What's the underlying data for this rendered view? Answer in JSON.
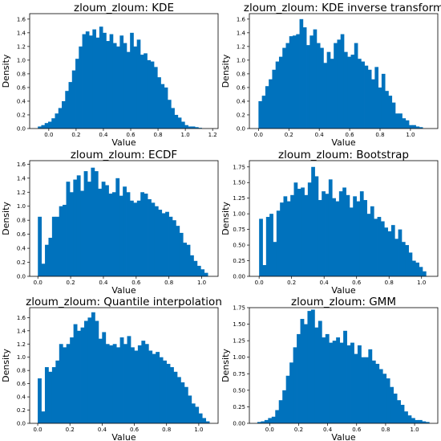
{
  "colors": {
    "bar": "#0072BD",
    "background": "#ffffff",
    "axes": "#000000"
  },
  "chart_data": [
    {
      "type": "bar",
      "title": "zloum_zloum: KDE",
      "xlabel": "Value",
      "ylabel": "Density",
      "xlim": [
        -0.14,
        1.24
      ],
      "ylim": [
        0,
        1.68
      ],
      "xticks": [
        0.0,
        0.2,
        0.4,
        0.6,
        0.8,
        1.0,
        1.2
      ],
      "xtick_labels": [
        "0.0",
        "0.2",
        "0.4",
        "0.6",
        "0.8",
        "1.0",
        "1.2"
      ],
      "yticks": [
        0.0,
        0.2,
        0.4,
        0.6,
        0.8,
        1.0,
        1.2,
        1.4,
        1.6
      ],
      "ytick_labels": [
        "0.0",
        "0.2",
        "0.4",
        "0.6",
        "0.8",
        "1.0",
        "1.2",
        "1.4",
        "1.6"
      ],
      "bin_start": -0.08,
      "bin_width": 0.025,
      "values": [
        0.03,
        0.05,
        0.08,
        0.1,
        0.15,
        0.22,
        0.3,
        0.4,
        0.55,
        0.68,
        0.85,
        1.02,
        1.2,
        1.38,
        1.42,
        1.36,
        1.45,
        1.33,
        1.49,
        1.4,
        1.28,
        1.38,
        1.25,
        1.2,
        1.36,
        1.25,
        1.12,
        1.4,
        1.2,
        1.3,
        1.08,
        1.1,
        1.0,
        0.98,
        0.9,
        0.75,
        0.65,
        0.6,
        0.42,
        0.3,
        0.2,
        0.16,
        0.1,
        0.05,
        0.03,
        0.03,
        0.02,
        0.01
      ]
    },
    {
      "type": "bar",
      "title": "zloum_zloum: KDE inverse transform",
      "xlabel": "Value",
      "ylabel": "Density",
      "xlim": [
        -0.06,
        1.18
      ],
      "ylim": [
        0,
        1.68
      ],
      "xticks": [
        0.0,
        0.2,
        0.4,
        0.6,
        0.8,
        1.0
      ],
      "xtick_labels": [
        "0.0",
        "0.2",
        "0.4",
        "0.6",
        "0.8",
        "1.0"
      ],
      "yticks": [
        0.0,
        0.2,
        0.4,
        0.6,
        0.8,
        1.0,
        1.2,
        1.4,
        1.6
      ],
      "ytick_labels": [
        "0.0",
        "0.2",
        "0.4",
        "0.6",
        "0.8",
        "1.0",
        "1.2",
        "1.4",
        "1.6"
      ],
      "bin_start": 0.0,
      "bin_width": 0.0225,
      "values": [
        0.4,
        0.48,
        0.62,
        0.72,
        0.86,
        0.98,
        1.05,
        1.18,
        1.25,
        1.35,
        1.36,
        1.38,
        1.6,
        1.48,
        1.22,
        1.36,
        1.45,
        1.25,
        1.18,
        0.96,
        1.12,
        1.02,
        1.25,
        1.3,
        1.38,
        1.12,
        1.05,
        1.08,
        1.25,
        1.02,
        0.98,
        0.92,
        0.86,
        0.72,
        0.9,
        0.6,
        0.8,
        0.55,
        0.48,
        0.38,
        0.22,
        0.22,
        0.15,
        0.12,
        0.05,
        0.05,
        0.03,
        0.02
      ]
    },
    {
      "type": "bar",
      "title": "zloum_zloum: ECDF",
      "xlabel": "Value",
      "ylabel": "Density",
      "xlim": [
        -0.05,
        1.1
      ],
      "ylim": [
        0,
        1.65
      ],
      "xticks": [
        0.0,
        0.2,
        0.4,
        0.6,
        0.8,
        1.0
      ],
      "xtick_labels": [
        "0.0",
        "0.2",
        "0.4",
        "0.6",
        "0.8",
        "1.0"
      ],
      "yticks": [
        0.0,
        0.2,
        0.4,
        0.6,
        0.8,
        1.0,
        1.2,
        1.4,
        1.6
      ],
      "ytick_labels": [
        "0.0",
        "0.2",
        "0.4",
        "0.6",
        "0.8",
        "1.0",
        "1.2",
        "1.4",
        "1.6"
      ],
      "bin_start": 0.0,
      "bin_width": 0.0216,
      "values": [
        0.85,
        0.18,
        0.45,
        0.55,
        0.85,
        0.85,
        1.0,
        1.02,
        1.35,
        1.2,
        1.38,
        1.44,
        1.22,
        1.5,
        1.35,
        1.55,
        1.5,
        1.25,
        1.35,
        1.3,
        1.18,
        1.2,
        1.4,
        1.15,
        1.28,
        1.2,
        1.08,
        1.05,
        1.08,
        1.2,
        1.18,
        1.1,
        1.05,
        1.0,
        0.95,
        0.9,
        0.92,
        0.85,
        0.8,
        0.72,
        0.62,
        0.48,
        0.45,
        0.3,
        0.22,
        0.15,
        0.1,
        0.05
      ]
    },
    {
      "type": "bar",
      "title": "zloum_zloum: Bootstrap",
      "xlabel": "Value",
      "ylabel": "Density",
      "xlim": [
        -0.06,
        1.1
      ],
      "ylim": [
        0,
        1.85
      ],
      "xticks": [
        0.0,
        0.2,
        0.4,
        0.6,
        0.8,
        1.0
      ],
      "xtick_labels": [
        "0.0",
        "0.2",
        "0.4",
        "0.6",
        "0.8",
        "1.0"
      ],
      "yticks": [
        0.0,
        0.25,
        0.5,
        0.75,
        1.0,
        1.25,
        1.5,
        1.75
      ],
      "ytick_labels": [
        "0.00",
        "0.25",
        "0.50",
        "0.75",
        "1.00",
        "1.25",
        "1.50",
        "1.75"
      ],
      "bin_start": 0.0,
      "bin_width": 0.0214,
      "values": [
        0.92,
        0.18,
        0.95,
        1.0,
        0.55,
        1.05,
        1.18,
        1.28,
        1.2,
        1.3,
        1.5,
        1.4,
        1.42,
        1.3,
        1.5,
        1.75,
        1.6,
        1.22,
        1.36,
        1.32,
        1.55,
        1.25,
        1.2,
        1.36,
        1.42,
        1.3,
        1.1,
        1.28,
        1.2,
        1.36,
        1.22,
        1.0,
        1.12,
        0.92,
        0.95,
        0.88,
        0.78,
        0.72,
        0.82,
        0.6,
        0.75,
        0.55,
        0.5,
        0.38,
        0.25,
        0.22,
        0.15,
        0.08
      ]
    },
    {
      "type": "bar",
      "title": "zloum_zloum: Quantile interpolation",
      "xlabel": "Value",
      "ylabel": "Density",
      "xlim": [
        -0.05,
        1.12
      ],
      "ylim": [
        0,
        1.75
      ],
      "xticks": [
        0.0,
        0.2,
        0.4,
        0.6,
        0.8,
        1.0
      ],
      "xtick_labels": [
        "0.0",
        "0.2",
        "0.4",
        "0.6",
        "0.8",
        "1.0"
      ],
      "yticks": [
        0.0,
        0.2,
        0.4,
        0.6,
        0.8,
        1.0,
        1.2,
        1.4,
        1.6
      ],
      "ytick_labels": [
        "0.0",
        "0.2",
        "0.4",
        "0.6",
        "0.8",
        "1.0",
        "1.2",
        "1.4",
        "1.6"
      ],
      "bin_start": 0.0,
      "bin_width": 0.0222,
      "values": [
        0.68,
        0.18,
        0.85,
        0.78,
        0.85,
        0.95,
        1.2,
        1.15,
        1.2,
        1.3,
        1.5,
        1.4,
        1.45,
        1.55,
        1.6,
        1.68,
        1.55,
        1.28,
        1.38,
        1.2,
        1.18,
        1.2,
        1.15,
        1.3,
        1.2,
        1.32,
        1.15,
        1.1,
        1.18,
        1.25,
        1.2,
        1.1,
        1.05,
        1.08,
        1.0,
        0.95,
        0.9,
        0.85,
        0.78,
        0.7,
        0.62,
        0.55,
        0.42,
        0.3,
        0.25,
        0.15,
        0.08,
        0.03
      ]
    },
    {
      "type": "bar",
      "title": "zloum_zloum: GMM",
      "xlabel": "Value",
      "ylabel": "Density",
      "xlim": [
        -0.14,
        1.16
      ],
      "ylim": [
        0,
        1.75
      ],
      "xticks": [
        0.0,
        0.2,
        0.4,
        0.6,
        0.8,
        1.0
      ],
      "xtick_labels": [
        "0.0",
        "0.2",
        "0.4",
        "0.6",
        "0.8",
        "1.0"
      ],
      "yticks": [
        0.0,
        0.25,
        0.5,
        0.75,
        1.0,
        1.25,
        1.5,
        1.75
      ],
      "ytick_labels": [
        "0.00",
        "0.25",
        "0.50",
        "0.75",
        "1.00",
        "1.25",
        "1.50",
        "1.75"
      ],
      "bin_start": -0.085,
      "bin_width": 0.0247,
      "values": [
        0.02,
        0.03,
        0.05,
        0.08,
        0.1,
        0.2,
        0.35,
        0.5,
        0.72,
        0.92,
        1.15,
        1.35,
        1.58,
        1.5,
        1.7,
        1.72,
        1.45,
        1.55,
        1.3,
        1.35,
        1.22,
        1.25,
        1.3,
        1.22,
        1.4,
        1.18,
        1.22,
        1.05,
        1.18,
        1.0,
        1.0,
        1.12,
        0.95,
        0.9,
        0.82,
        0.75,
        0.68,
        0.55,
        0.45,
        0.35,
        0.28,
        0.18,
        0.12,
        0.08,
        0.05,
        0.05,
        0.03,
        0.02
      ]
    }
  ]
}
